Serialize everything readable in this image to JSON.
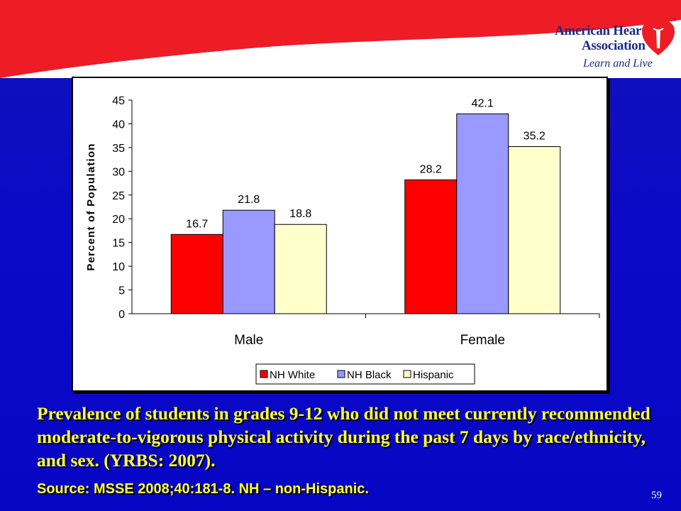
{
  "branding": {
    "org_line1": "American Heart",
    "org_line2": "Association",
    "tagline": "Learn and Live",
    "logo_icon": "heart-torch-icon",
    "registered_mark": "®"
  },
  "chart_data": {
    "type": "bar",
    "categories": [
      "Male",
      "Female"
    ],
    "series": [
      {
        "name": "NH White",
        "values": [
          16.7,
          28.2
        ],
        "color": "#ff0000"
      },
      {
        "name": "NH Black",
        "values": [
          21.8,
          42.1
        ],
        "color": "#9999ff"
      },
      {
        "name": "Hispanic",
        "values": [
          18.8,
          35.2
        ],
        "color": "#ffffcc"
      }
    ],
    "ylabel": "Percent of Population",
    "xlabel": "",
    "ylim": [
      0,
      45
    ],
    "yticks": [
      0,
      5,
      10,
      15,
      20,
      25,
      30,
      35,
      40,
      45
    ],
    "legend": "bottom",
    "grid": false,
    "data_labels": true
  },
  "caption": {
    "text": "Prevalence of students in grades 9-12 who did not meet currently recommended moderate-to-vigorous physical activity during the past 7 days by race/ethnicity, and sex. (YRBS: 2007).",
    "source": "Source: MSSE 2008;40:181-8.   NH – non-Hispanic."
  },
  "slide": {
    "page_number": "59"
  },
  "colors": {
    "background": "#0a0ac8",
    "banner": "#ee1c25",
    "caption": "#ffff33"
  }
}
